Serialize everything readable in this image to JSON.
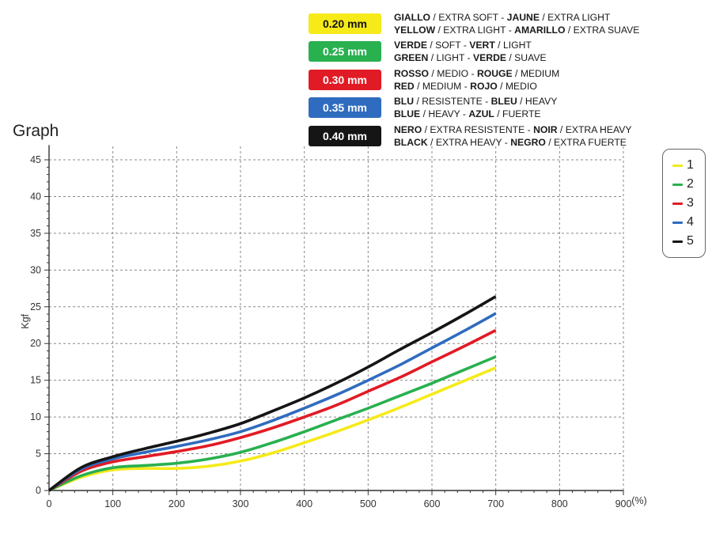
{
  "header": {
    "graph_title": "Graph",
    "rows": [
      {
        "swatch": "0.20 mm",
        "color": "#f6ea19",
        "dark": true,
        "line1": [
          [
            "GIALLO",
            true
          ],
          [
            " / EXTRA SOFT - ",
            false
          ],
          [
            "JAUNE",
            true
          ],
          [
            " / EXTRA LIGHT",
            false
          ]
        ],
        "line2": [
          [
            "YELLOW",
            true
          ],
          [
            " / EXTRA LIGHT - ",
            false
          ],
          [
            "AMARILLO",
            true
          ],
          [
            " / EXTRA SUAVE",
            false
          ]
        ]
      },
      {
        "swatch": "0.25 mm",
        "color": "#29b04f",
        "dark": false,
        "line1": [
          [
            "VERDE",
            true
          ],
          [
            " / SOFT - ",
            false
          ],
          [
            "VERT",
            true
          ],
          [
            " / LIGHT",
            false
          ]
        ],
        "line2": [
          [
            "GREEN",
            true
          ],
          [
            " / LIGHT - ",
            false
          ],
          [
            "VERDE",
            true
          ],
          [
            " / SUAVE",
            false
          ]
        ]
      },
      {
        "swatch": "0.30 mm",
        "color": "#e11b25",
        "dark": false,
        "line1": [
          [
            "ROSSO",
            true
          ],
          [
            " / MEDIO - ",
            false
          ],
          [
            "ROUGE",
            true
          ],
          [
            " / MEDIUM",
            false
          ]
        ],
        "line2": [
          [
            "RED",
            true
          ],
          [
            " / MEDIUM - ",
            false
          ],
          [
            "ROJO",
            true
          ],
          [
            " / MEDIO",
            false
          ]
        ]
      },
      {
        "swatch": "0.35 mm",
        "color": "#2f6cbf",
        "dark": false,
        "line1": [
          [
            "BLU",
            true
          ],
          [
            " / RESISTENTE - ",
            false
          ],
          [
            "BLEU",
            true
          ],
          [
            " / HEAVY",
            false
          ]
        ],
        "line2": [
          [
            "BLUE",
            true
          ],
          [
            " / HEAVY - ",
            false
          ],
          [
            "AZUL",
            true
          ],
          [
            " / FUERTE",
            false
          ]
        ]
      },
      {
        "swatch": "0.40 mm",
        "color": "#151515",
        "dark": false,
        "line1": [
          [
            "NERO",
            true
          ],
          [
            " / EXTRA RESISTENTE - ",
            false
          ],
          [
            "NOIR",
            true
          ],
          [
            " / EXTRA HEAVY",
            false
          ]
        ],
        "line2": [
          [
            "BLACK",
            true
          ],
          [
            " / EXTRA HEAVY - ",
            false
          ],
          [
            "NEGRO",
            true
          ],
          [
            " / EXTRA FUERTE",
            false
          ]
        ]
      }
    ]
  },
  "chart_data": {
    "type": "line",
    "title": "",
    "xlabel": "(%)",
    "ylabel": "Kgf",
    "xlim": [
      0,
      900
    ],
    "ylim": [
      0,
      47
    ],
    "xticks": [
      0,
      100,
      200,
      300,
      400,
      500,
      600,
      700,
      800,
      900
    ],
    "yticks": [
      0,
      5,
      10,
      15,
      20,
      25,
      30,
      35,
      40,
      45
    ],
    "grid": true,
    "legend_position": "right",
    "series": [
      {
        "name": "1",
        "color": "#f6ea19",
        "x": [
          0,
          50,
          100,
          150,
          200,
          250,
          300,
          350,
          400,
          450,
          500,
          550,
          600,
          650,
          700
        ],
        "y": [
          0,
          1.8,
          2.8,
          3.0,
          3.0,
          3.3,
          4.0,
          5.1,
          6.5,
          8.0,
          9.6,
          11.3,
          13.1,
          14.9,
          16.7
        ]
      },
      {
        "name": "2",
        "color": "#29b04f",
        "x": [
          0,
          50,
          100,
          150,
          200,
          250,
          300,
          350,
          400,
          450,
          500,
          550,
          600,
          650,
          700
        ],
        "y": [
          0,
          2.0,
          3.1,
          3.4,
          3.7,
          4.3,
          5.2,
          6.5,
          8.0,
          9.6,
          11.2,
          12.9,
          14.6,
          16.4,
          18.2
        ]
      },
      {
        "name": "3",
        "color": "#e11b25",
        "x": [
          0,
          50,
          100,
          150,
          200,
          250,
          300,
          350,
          400,
          450,
          500,
          550,
          600,
          650,
          700
        ],
        "y": [
          0,
          2.6,
          3.9,
          4.6,
          5.3,
          6.1,
          7.2,
          8.5,
          10.0,
          11.6,
          13.5,
          15.4,
          17.5,
          19.6,
          21.8
        ]
      },
      {
        "name": "4",
        "color": "#2f6cbf",
        "x": [
          0,
          50,
          100,
          150,
          200,
          250,
          300,
          350,
          400,
          450,
          500,
          550,
          600,
          650,
          700
        ],
        "y": [
          0,
          2.9,
          4.3,
          5.2,
          6.0,
          6.9,
          8.0,
          9.5,
          11.2,
          13.0,
          15.0,
          17.1,
          19.4,
          21.7,
          24.1
        ]
      },
      {
        "name": "5",
        "color": "#151515",
        "x": [
          0,
          50,
          100,
          150,
          200,
          250,
          300,
          350,
          400,
          450,
          500,
          550,
          600,
          650,
          700
        ],
        "y": [
          0,
          3.1,
          4.6,
          5.7,
          6.7,
          7.8,
          9.1,
          10.8,
          12.6,
          14.6,
          16.8,
          19.2,
          21.5,
          23.9,
          26.4
        ]
      }
    ]
  }
}
